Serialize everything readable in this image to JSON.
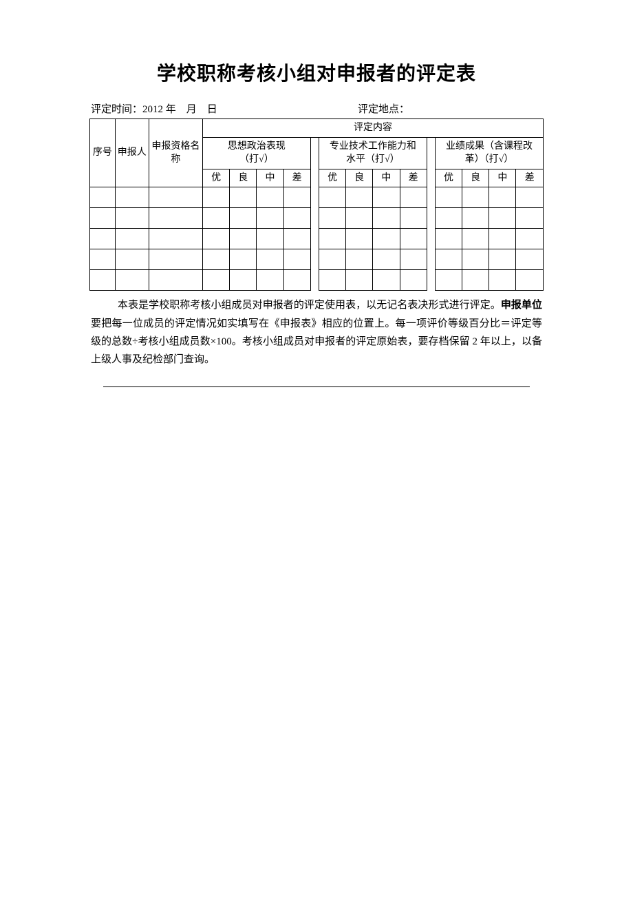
{
  "title": "学校职称考核小组对申报者的评定表",
  "meta": {
    "time_label": "评定时间：",
    "year": "2012",
    "year_unit": "年",
    "month_unit": "月",
    "day_unit": "日",
    "place_label": "评定地点："
  },
  "table": {
    "header_seq": "序号",
    "header_applicant": "申报人",
    "header_qual": "申报资格名称",
    "header_content": "评定内容",
    "header_cat1_line1": "思想政治表现",
    "header_cat1_line2": "（打√）",
    "header_cat2_line1": "专业技术工作能力和",
    "header_cat2_line2": "水平（打√）",
    "header_cat3_line1": "业绩成果（含课程改",
    "header_cat3_line2": "革）（打√）",
    "grades": [
      "优",
      "良",
      "中",
      "差"
    ],
    "row_count": 5,
    "border_color": "#000000",
    "font_size": 14
  },
  "notes": {
    "seg1": "本表是学校职称考核小组成员对申报者的评定使用表，以无记名表决形式进行评定。",
    "bold": "申报单位",
    "seg2": "要把每一位成员的评定情况如实填写在《申报表》相应的位置上。每一项评价等级百分比＝评定等级的总数÷考核小组成员数×100。考核小组成员对申报者的评定原始表，要存档保留 2 年以上，以备上级人事及纪检部门查询。"
  }
}
